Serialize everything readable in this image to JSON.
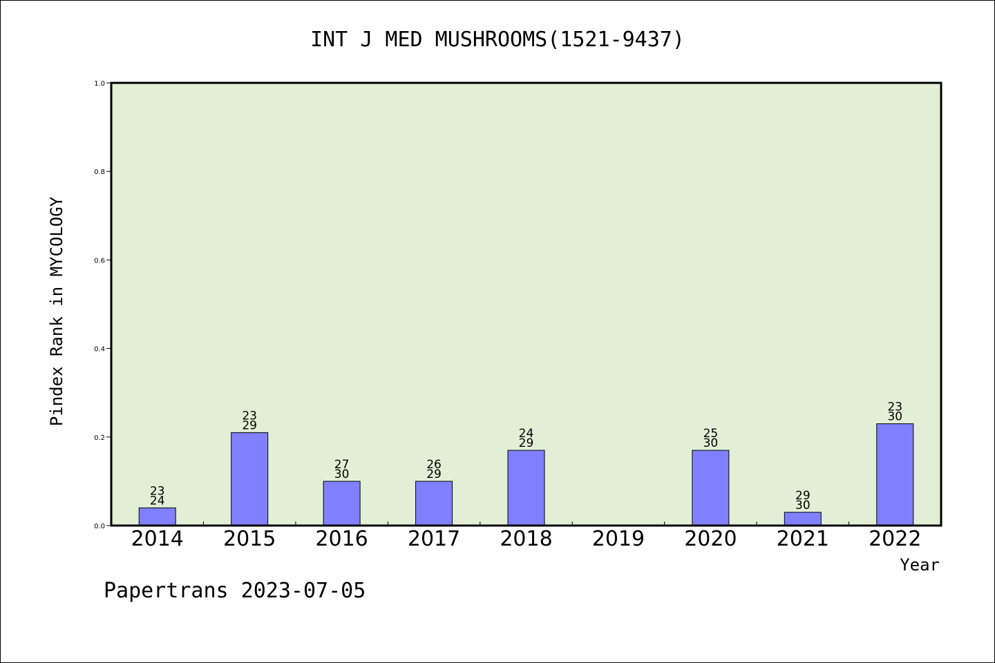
{
  "chart_data": {
    "type": "bar",
    "title": "INT J MED MUSHROOMS(1521-9437)",
    "xlabel": "Year",
    "ylabel": "Pindex Rank in MYCOLOGY",
    "categories": [
      "2014",
      "2015",
      "2016",
      "2017",
      "2018",
      "2019",
      "2020",
      "2021",
      "2022"
    ],
    "values": [
      0.04,
      0.21,
      0.1,
      0.1,
      0.17,
      null,
      0.17,
      0.03,
      0.23
    ],
    "rank": [
      "23",
      "23",
      "27",
      "26",
      "24",
      "",
      "25",
      "29",
      "23"
    ],
    "total": [
      "24",
      "29",
      "30",
      "29",
      "29",
      "",
      "30",
      "30",
      "30"
    ],
    "ylim": [
      0.0,
      1.0
    ],
    "yticks": [
      "0.0",
      "0.2",
      "0.4",
      "0.6",
      "0.8",
      "1.0"
    ],
    "grid": false,
    "colors": {
      "plot_bg": "#e2efd6",
      "bar": "#8080ff",
      "axis": "#000000"
    }
  },
  "footer": "Papertrans 2023-07-05"
}
